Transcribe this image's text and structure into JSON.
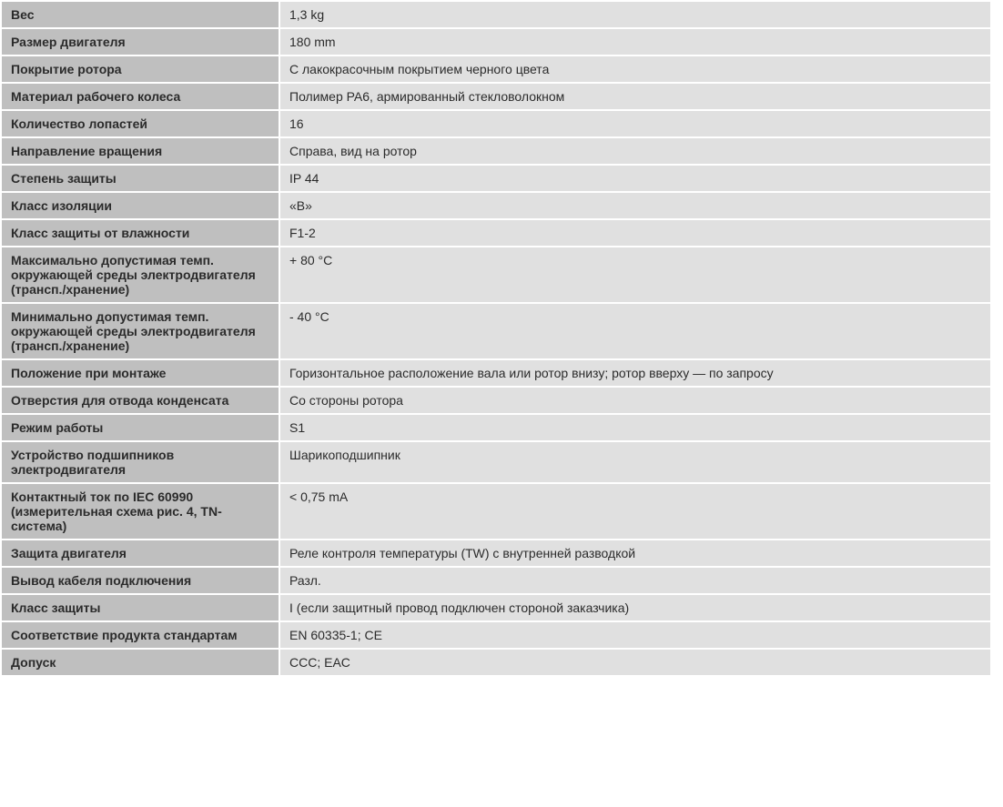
{
  "table": {
    "label_bg": "#bfbfbf",
    "value_bg": "#e0e0e0",
    "border_color": "#ffffff",
    "text_color": "#2b2b2b",
    "font_size": 14,
    "label_col_width": 284,
    "rows": [
      {
        "label": "Вес",
        "value": "1,3 kg"
      },
      {
        "label": "Размер двигателя",
        "value": "180 mm"
      },
      {
        "label": "Покрытие ротора",
        "value": "С лакокрасочным покрытием черного цвета"
      },
      {
        "label": "Материал рабочего колеса",
        "value": "Полимер PA6, армированный стекловолокном"
      },
      {
        "label": "Количество лопастей",
        "value": "16"
      },
      {
        "label": "Направление вращения",
        "value": "Справа, вид на ротор"
      },
      {
        "label": "Степень защиты",
        "value": "IP 44"
      },
      {
        "label": "Класс изоляции",
        "value": "«B»"
      },
      {
        "label": "Класс защиты от влажности",
        "value": "F1-2"
      },
      {
        "label": "Максимально допустимая темп. окружающей среды электродвигателя (трансп./хранение)",
        "value": "+ 80 °C"
      },
      {
        "label": "Минимально допустимая темп. окружающей среды электродвигателя (трансп./хранение)",
        "value": "- 40 °C"
      },
      {
        "label": "Положение при монтаже",
        "value": "Горизонтальное расположение вала или ротор внизу; ротор вверху — по запросу"
      },
      {
        "label": "Отверстия для отвода конденсата",
        "value": "Со стороны ротора"
      },
      {
        "label": "Режим работы",
        "value": "S1"
      },
      {
        "label": "Устройство подшипников электродвигателя",
        "value": "Шарикоподшипник"
      },
      {
        "label": "Контактный ток по IEC 60990 (измерительная схема рис. 4, TN-система)",
        "value": "< 0,75 mA"
      },
      {
        "label": "Защита двигателя",
        "value": "Реле контроля температуры (TW) с внутренней разводкой"
      },
      {
        "label": "Вывод кабеля подключения",
        "value": "Разл."
      },
      {
        "label": "Класс защиты",
        "value": "I (если защитный провод подключен стороной заказчика)"
      },
      {
        "label": "Соответствие продукта стандартам",
        "value": "EN 60335-1; CE"
      },
      {
        "label": "Допуск",
        "value": "CCC; EAC"
      }
    ]
  }
}
